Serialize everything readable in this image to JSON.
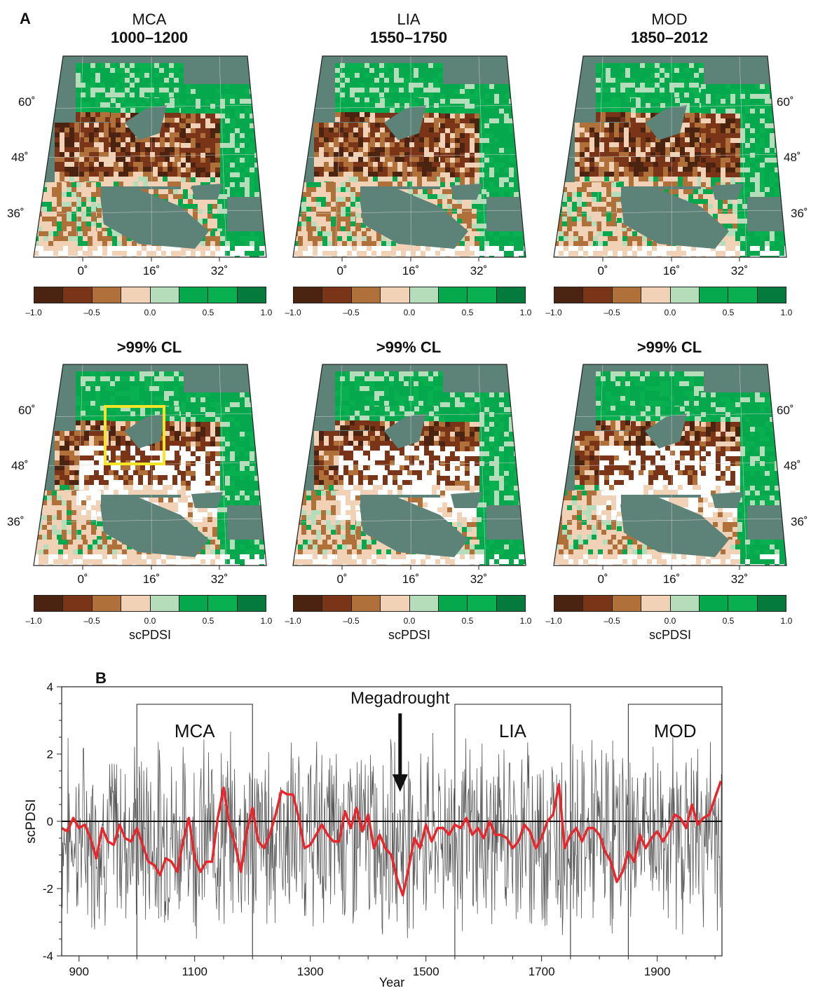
{
  "panel_a_label": "A",
  "panel_b_label": "B",
  "colors": {
    "ocean": "#5d8278",
    "colorbar": [
      "#4a2410",
      "#7a3518",
      "#b0703a",
      "#f2d2b6",
      "#b5ddb9",
      "#05a84c",
      "#08b050",
      "#047a3c"
    ],
    "highlight_box": "#f4e52a",
    "raw_series": "#555555",
    "smoothed_series": "#e8262b"
  },
  "maps": {
    "row1": [
      {
        "period": "MCA",
        "years": "1000–1200"
      },
      {
        "period": "LIA",
        "years": "1550–1750"
      },
      {
        "period": "MOD",
        "years": "1850–2012"
      }
    ],
    "row2_title": ">99% CL",
    "lat_labels": [
      "60˚",
      "48˚",
      "36˚"
    ],
    "lon_labels": [
      "0˚",
      "16˚",
      "32˚"
    ],
    "colorbar_ticks": [
      "–1.0",
      "–0.5",
      "0.0",
      "0.5",
      "1.0"
    ],
    "colorbar_label": "scPDSI"
  },
  "chart_data": {
    "type": "line",
    "xlabel": "Year",
    "ylabel": "scPDSI",
    "xlim": [
      870,
      2012
    ],
    "ylim": [
      -4,
      4
    ],
    "xticks": [
      900,
      1100,
      1300,
      1500,
      1700,
      1900
    ],
    "yticks": [
      -4,
      -2,
      0,
      2,
      4
    ],
    "periods": [
      {
        "name": "MCA",
        "start": 1000,
        "end": 1200
      },
      {
        "name": "LIA",
        "start": 1550,
        "end": 1750
      },
      {
        "name": "MOD",
        "start": 1850,
        "end": 2012
      }
    ],
    "annotation": {
      "text": "Megadrought",
      "x": 1465
    },
    "series": [
      {
        "style": "smoothed",
        "x": [
          870,
          880,
          890,
          900,
          910,
          920,
          930,
          940,
          950,
          960,
          970,
          980,
          990,
          1000,
          1010,
          1020,
          1030,
          1040,
          1050,
          1060,
          1070,
          1080,
          1090,
          1100,
          1110,
          1120,
          1130,
          1140,
          1150,
          1160,
          1170,
          1180,
          1190,
          1200,
          1210,
          1220,
          1230,
          1240,
          1250,
          1260,
          1270,
          1280,
          1290,
          1300,
          1310,
          1320,
          1330,
          1340,
          1350,
          1360,
          1370,
          1380,
          1390,
          1400,
          1410,
          1420,
          1430,
          1440,
          1450,
          1460,
          1470,
          1480,
          1490,
          1500,
          1510,
          1520,
          1530,
          1540,
          1550,
          1560,
          1570,
          1580,
          1590,
          1600,
          1610,
          1620,
          1630,
          1640,
          1650,
          1660,
          1670,
          1680,
          1690,
          1700,
          1710,
          1720,
          1730,
          1740,
          1750,
          1760,
          1770,
          1780,
          1790,
          1800,
          1810,
          1820,
          1830,
          1840,
          1850,
          1860,
          1870,
          1880,
          1890,
          1900,
          1910,
          1920,
          1930,
          1940,
          1950,
          1960,
          1970,
          1980,
          1990,
          2000,
          2010
        ],
        "values": [
          -0.2,
          -0.3,
          0.1,
          -0.2,
          -0.1,
          -0.5,
          -1.1,
          -0.2,
          -0.6,
          -0.7,
          -0.1,
          -0.5,
          -0.6,
          -0.2,
          -0.7,
          -1.2,
          -1.3,
          -1.6,
          -1.1,
          -1.2,
          -1.5,
          -0.6,
          0.1,
          -1.1,
          -1.5,
          -1.2,
          -1.2,
          0.1,
          1.0,
          -0.1,
          -0.7,
          -1.5,
          -0.3,
          0.4,
          -0.6,
          -0.8,
          -0.4,
          0.2,
          0.9,
          0.8,
          0.8,
          0.1,
          -0.8,
          -0.7,
          -0.4,
          -0.1,
          -0.4,
          -0.6,
          -0.6,
          0.3,
          -0.2,
          0.4,
          -0.3,
          0.2,
          -0.8,
          -0.4,
          -0.8,
          -1.0,
          -1.7,
          -2.2,
          -1.4,
          -0.5,
          -0.8,
          -0.1,
          -0.6,
          -0.2,
          -0.2,
          -0.4,
          -0.1,
          -0.2,
          0.1,
          -0.4,
          -0.2,
          -0.5,
          0.0,
          -0.4,
          -0.4,
          -0.5,
          -0.8,
          -0.6,
          -0.1,
          -0.3,
          -0.8,
          -0.5,
          0.0,
          0.2,
          1.1,
          -0.8,
          -0.4,
          -0.2,
          -0.6,
          -0.2,
          -0.2,
          -0.4,
          -0.9,
          -1.2,
          -1.8,
          -1.5,
          -0.9,
          -1.2,
          -0.4,
          -0.8,
          -0.5,
          -0.3,
          -0.6,
          -0.3,
          0.2,
          0.1,
          -0.2,
          0.5,
          -0.1,
          0.1,
          0.2,
          0.7,
          1.2
        ]
      }
    ]
  }
}
